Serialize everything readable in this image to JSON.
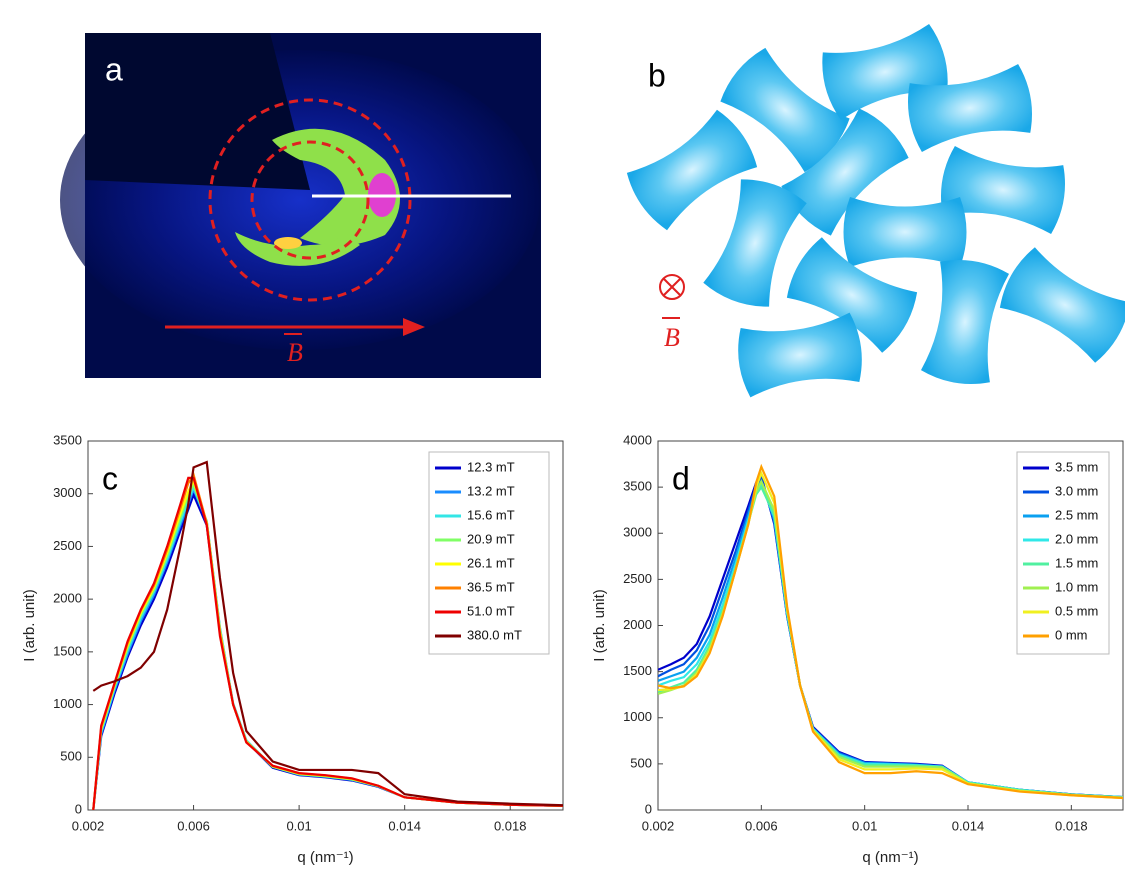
{
  "figure_a": {
    "label": "a",
    "field_label": "B"
  },
  "figure_b": {
    "label": "b",
    "field_label": "B"
  },
  "chart_data": [
    {
      "type": "line",
      "label": "c",
      "xlabel": "q (nm⁻¹)",
      "ylabel": "I (arb. unit)",
      "legend": "upper right",
      "x": [
        0.0022,
        0.0025,
        0.003,
        0.0035,
        0.004,
        0.0045,
        0.005,
        0.0055,
        0.0058,
        0.006,
        0.0065,
        0.007,
        0.0075,
        0.008,
        0.009,
        0.01,
        0.011,
        0.012,
        0.013,
        0.014,
        0.016,
        0.018,
        0.02
      ],
      "xlim": [
        0.002,
        0.02
      ],
      "xticks": [
        0.002,
        0.006,
        0.01,
        0.014,
        0.018
      ],
      "ylim": [
        0,
        3500
      ],
      "yticks": [
        0,
        500,
        1000,
        1500,
        2000,
        2500,
        3000,
        3500
      ],
      "series": [
        {
          "name": "12.3 mT",
          "color": "#0000cc",
          "values": [
            0,
            700,
            1100,
            1450,
            1750,
            2000,
            2300,
            2650,
            2850,
            2990,
            2700,
            1700,
            1000,
            650,
            400,
            330,
            310,
            280,
            220,
            120,
            70,
            50,
            40
          ]
        },
        {
          "name": "13.2 mT",
          "color": "#1a8cff",
          "values": [
            0,
            720,
            1130,
            1480,
            1790,
            2040,
            2350,
            2700,
            2900,
            3040,
            2740,
            1730,
            1010,
            660,
            410,
            335,
            315,
            285,
            225,
            120,
            70,
            50,
            40
          ]
        },
        {
          "name": "15.6 mT",
          "color": "#33e6e6",
          "values": [
            0,
            740,
            1150,
            1510,
            1820,
            2070,
            2380,
            2730,
            2940,
            3060,
            2740,
            1720,
            1010,
            660,
            410,
            340,
            320,
            290,
            225,
            120,
            70,
            50,
            40
          ]
        },
        {
          "name": "20.9 mT",
          "color": "#80ff66",
          "values": [
            0,
            760,
            1170,
            1540,
            1850,
            2090,
            2410,
            2770,
            2980,
            3090,
            2730,
            1710,
            1000,
            650,
            410,
            340,
            320,
            290,
            228,
            120,
            70,
            50,
            40
          ]
        },
        {
          "name": "26.1 mT",
          "color": "#ffff00",
          "values": [
            0,
            770,
            1180,
            1560,
            1870,
            2110,
            2440,
            2810,
            3020,
            3120,
            2730,
            1700,
            1000,
            650,
            415,
            345,
            325,
            295,
            228,
            120,
            70,
            50,
            40
          ]
        },
        {
          "name": "36.5 mT",
          "color": "#ff8000",
          "values": [
            0,
            785,
            1190,
            1580,
            1890,
            2130,
            2470,
            2860,
            3100,
            3180,
            2720,
            1680,
            1000,
            645,
            418,
            348,
            328,
            298,
            230,
            120,
            70,
            50,
            40
          ]
        },
        {
          "name": "51.0 mT",
          "color": "#ee0000",
          "values": [
            0,
            800,
            1200,
            1600,
            1900,
            2150,
            2500,
            2900,
            3150,
            3150,
            2700,
            1650,
            1000,
            640,
            420,
            350,
            330,
            300,
            230,
            120,
            70,
            50,
            40
          ]
        },
        {
          "name": "380.0 mT",
          "color": "#800000",
          "values": [
            1130,
            1180,
            1220,
            1270,
            1350,
            1500,
            1900,
            2500,
            2900,
            3250,
            3300,
            2200,
            1300,
            750,
            460,
            380,
            380,
            380,
            350,
            150,
            80,
            60,
            45
          ]
        }
      ]
    },
    {
      "type": "line",
      "label": "d",
      "xlabel": "q (nm⁻¹)",
      "ylabel": "I (arb. unit)",
      "legend": "upper right",
      "x": [
        0.002,
        0.0025,
        0.003,
        0.0035,
        0.004,
        0.0045,
        0.005,
        0.0055,
        0.0058,
        0.006,
        0.0065,
        0.007,
        0.0075,
        0.008,
        0.009,
        0.01,
        0.011,
        0.012,
        0.013,
        0.014,
        0.016,
        0.018,
        0.02
      ],
      "xlim": [
        0.002,
        0.02
      ],
      "xticks": [
        0.002,
        0.006,
        0.01,
        0.014,
        0.018
      ],
      "ylim": [
        0,
        4000
      ],
      "yticks": [
        0,
        500,
        1000,
        1500,
        2000,
        2500,
        3000,
        3500,
        4000
      ],
      "series": [
        {
          "name": "3.5 mm",
          "color": "#0000cc",
          "values": [
            1520,
            1580,
            1650,
            1800,
            2100,
            2500,
            2900,
            3300,
            3550,
            3620,
            3100,
            2100,
            1350,
            900,
            630,
            520,
            510,
            500,
            480,
            300,
            220,
            170,
            140
          ]
        },
        {
          "name": "3.0 mm",
          "color": "#0050e0",
          "values": [
            1450,
            1520,
            1580,
            1730,
            2000,
            2400,
            2800,
            3250,
            3520,
            3600,
            3120,
            2100,
            1350,
            890,
            620,
            515,
            505,
            495,
            475,
            300,
            220,
            170,
            140
          ]
        },
        {
          "name": "2.5 mm",
          "color": "#0aa0f0",
          "values": [
            1400,
            1450,
            1500,
            1650,
            1900,
            2300,
            2730,
            3200,
            3480,
            3560,
            3150,
            2120,
            1350,
            880,
            610,
            510,
            500,
            490,
            470,
            300,
            220,
            170,
            140
          ]
        },
        {
          "name": "2.0 mm",
          "color": "#30e8e8",
          "values": [
            1350,
            1400,
            1440,
            1580,
            1830,
            2220,
            2660,
            3150,
            3440,
            3520,
            3180,
            2130,
            1350,
            880,
            600,
            500,
            495,
            485,
            470,
            300,
            220,
            165,
            140
          ]
        },
        {
          "name": "1.5 mm",
          "color": "#50f0a0",
          "values": [
            1280,
            1330,
            1380,
            1520,
            1780,
            2160,
            2620,
            3120,
            3420,
            3500,
            3200,
            2150,
            1350,
            870,
            590,
            490,
            485,
            480,
            465,
            295,
            215,
            165,
            135
          ]
        },
        {
          "name": "1.0 mm",
          "color": "#a0f050",
          "values": [
            1260,
            1300,
            1350,
            1490,
            1750,
            2130,
            2600,
            3110,
            3450,
            3560,
            3250,
            2160,
            1350,
            870,
            575,
            470,
            470,
            470,
            460,
            290,
            210,
            165,
            135
          ]
        },
        {
          "name": "0.5 mm",
          "color": "#f0f020",
          "values": [
            1300,
            1310,
            1340,
            1470,
            1720,
            2110,
            2600,
            3100,
            3500,
            3650,
            3330,
            2180,
            1350,
            860,
            550,
            440,
            440,
            450,
            440,
            285,
            205,
            160,
            130
          ]
        },
        {
          "name": "0 mm",
          "color": "#ffa000",
          "values": [
            1350,
            1320,
            1340,
            1450,
            1700,
            2100,
            2600,
            3100,
            3550,
            3720,
            3400,
            2200,
            1350,
            850,
            520,
            400,
            400,
            420,
            400,
            280,
            200,
            160,
            130
          ]
        }
      ]
    }
  ]
}
